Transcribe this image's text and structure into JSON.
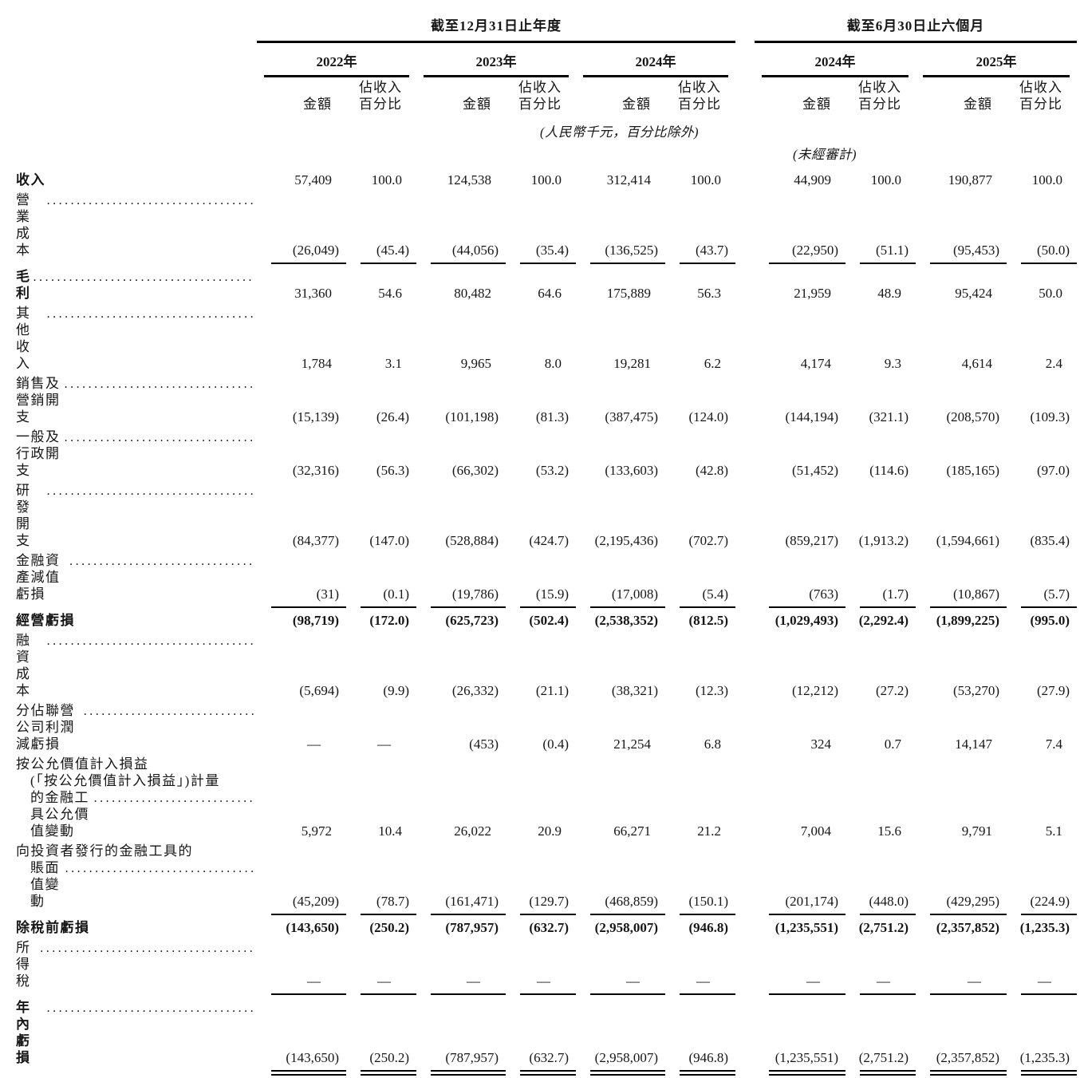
{
  "table": {
    "header": {
      "period_annual": "截至12月31日止年度",
      "period_interim": "截至6月30日止六個月",
      "years": [
        "2022年",
        "2023年",
        "2024年",
        "2024年",
        "2025年"
      ],
      "amount_label": "金額",
      "pct_line1": "佔收入",
      "pct_line2": "百分比",
      "unit_note": "(人民幣千元，百分比除外)",
      "unaudited_note": "(未經審計)"
    },
    "rows": [
      {
        "id": "revenue",
        "label_lines": [
          "收入"
        ],
        "bold_label": true,
        "bold_values": false,
        "dots": false,
        "rule_below": "none",
        "values": [
          "57,409",
          "100.0",
          "124,538",
          "100.0",
          "312,414",
          "100.0",
          "44,909",
          "100.0",
          "190,877",
          "100.0"
        ]
      },
      {
        "id": "cost-of-sales",
        "label_lines": [
          "營業成本"
        ],
        "bold_label": false,
        "bold_values": false,
        "dots": true,
        "rule_below": "single",
        "values": [
          "(26,049)",
          "(45.4)",
          "(44,056)",
          "(35.4)",
          "(136,525)",
          "(43.7)",
          "(22,950)",
          "(51.1)",
          "(95,453)",
          "(50.0)"
        ]
      },
      {
        "id": "gross-profit",
        "label_lines": [
          "毛利"
        ],
        "bold_label": true,
        "bold_values": false,
        "dots": true,
        "rule_below": "none",
        "values": [
          "31,360",
          "54.6",
          "80,482",
          "64.6",
          "175,889",
          "56.3",
          "21,959",
          "48.9",
          "95,424",
          "50.0"
        ]
      },
      {
        "id": "other-income",
        "label_lines": [
          "其他收入"
        ],
        "bold_label": false,
        "bold_values": false,
        "dots": true,
        "rule_below": "none",
        "values": [
          "1,784",
          "3.1",
          "9,965",
          "8.0",
          "19,281",
          "6.2",
          "4,174",
          "9.3",
          "4,614",
          "2.4"
        ]
      },
      {
        "id": "selling-marketing-expenses",
        "label_lines": [
          "銷售及營銷開支"
        ],
        "bold_label": false,
        "bold_values": false,
        "dots": true,
        "rule_below": "none",
        "values": [
          "(15,139)",
          "(26.4)",
          "(101,198)",
          "(81.3)",
          "(387,475)",
          "(124.0)",
          "(144,194)",
          "(321.1)",
          "(208,570)",
          "(109.3)"
        ]
      },
      {
        "id": "general-admin-expenses",
        "label_lines": [
          "一般及行政開支"
        ],
        "bold_label": false,
        "bold_values": false,
        "dots": true,
        "rule_below": "none",
        "values": [
          "(32,316)",
          "(56.3)",
          "(66,302)",
          "(53.2)",
          "(133,603)",
          "(42.8)",
          "(51,452)",
          "(114.6)",
          "(185,165)",
          "(97.0)"
        ]
      },
      {
        "id": "rd-expenses",
        "label_lines": [
          "研發開支"
        ],
        "bold_label": false,
        "bold_values": false,
        "dots": true,
        "rule_below": "none",
        "values": [
          "(84,377)",
          "(147.0)",
          "(528,884)",
          "(424.7)",
          "(2,195,436)",
          "(702.7)",
          "(859,217)",
          "(1,913.2)",
          "(1,594,661)",
          "(835.4)"
        ]
      },
      {
        "id": "impairment-financial-assets",
        "label_lines": [
          "金融資產減值虧損"
        ],
        "bold_label": false,
        "bold_values": false,
        "dots": true,
        "rule_below": "single",
        "values": [
          "(31)",
          "(0.1)",
          "(19,786)",
          "(15.9)",
          "(17,008)",
          "(5.4)",
          "(763)",
          "(1.7)",
          "(10,867)",
          "(5.7)"
        ]
      },
      {
        "id": "operating-loss",
        "label_lines": [
          "經營虧損"
        ],
        "bold_label": true,
        "bold_values": true,
        "dots": false,
        "rule_below": "none",
        "values": [
          "(98,719)",
          "(172.0)",
          "(625,723)",
          "(502.4)",
          "(2,538,352)",
          "(812.5)",
          "(1,029,493)",
          "(2,292.4)",
          "(1,899,225)",
          "(995.0)"
        ]
      },
      {
        "id": "finance-costs",
        "label_lines": [
          "融資成本"
        ],
        "bold_label": false,
        "bold_values": false,
        "dots": true,
        "rule_below": "none",
        "values": [
          "(5,694)",
          "(9.9)",
          "(26,332)",
          "(21.1)",
          "(38,321)",
          "(12.3)",
          "(12,212)",
          "(27.2)",
          "(53,270)",
          "(27.9)"
        ]
      },
      {
        "id": "share-of-associates",
        "label_lines": [
          "分佔聯營公司利潤減虧損"
        ],
        "bold_label": false,
        "bold_values": false,
        "dots": true,
        "rule_below": "none",
        "values": [
          "—",
          "—",
          "(453)",
          "(0.4)",
          "21,254",
          "6.8",
          "324",
          "0.7",
          "14,147",
          "7.4"
        ]
      },
      {
        "id": "fvtpl-fair-value-change",
        "label_lines": [
          "按公允價值計入損益",
          "(「按公允價值計入損益」)計量",
          "的金融工具公允價值變動"
        ],
        "bold_label": false,
        "bold_values": false,
        "dots": true,
        "rule_below": "none",
        "values": [
          "5,972",
          "10.4",
          "26,022",
          "20.9",
          "66,271",
          "21.2",
          "7,004",
          "15.6",
          "9,791",
          "5.1"
        ]
      },
      {
        "id": "instruments-issued-to-investors",
        "label_lines": [
          "向投資者發行的金融工具的",
          "賬面值變動"
        ],
        "bold_label": false,
        "bold_values": false,
        "dots": true,
        "rule_below": "single",
        "values": [
          "(45,209)",
          "(78.7)",
          "(161,471)",
          "(129.7)",
          "(468,859)",
          "(150.1)",
          "(201,174)",
          "(448.0)",
          "(429,295)",
          "(224.9)"
        ]
      },
      {
        "id": "loss-before-tax",
        "label_lines": [
          "除稅前虧損"
        ],
        "bold_label": true,
        "bold_values": true,
        "dots": false,
        "rule_below": "none",
        "values": [
          "(143,650)",
          "(250.2)",
          "(787,957)",
          "(632.7)",
          "(2,958,007)",
          "(946.8)",
          "(1,235,551)",
          "(2,751.2)",
          "(2,357,852)",
          "(1,235.3)"
        ]
      },
      {
        "id": "income-tax",
        "label_lines": [
          "所得稅"
        ],
        "bold_label": false,
        "bold_values": false,
        "dots": true,
        "rule_below": "single",
        "values": [
          "—",
          "—",
          "—",
          "—",
          "—",
          "—",
          "—",
          "—",
          "—",
          "—"
        ]
      },
      {
        "id": "loss-for-the-year",
        "label_lines": [
          "年內虧損"
        ],
        "bold_label": true,
        "bold_values": false,
        "dots": true,
        "rule_below": "double",
        "values": [
          "(143,650)",
          "(250.2)",
          "(787,957)",
          "(632.7)",
          "(2,958,007)",
          "(946.8)",
          "(1,235,551)",
          "(2,751.2)",
          "(2,357,852)",
          "(1,235.3)"
        ]
      }
    ]
  }
}
